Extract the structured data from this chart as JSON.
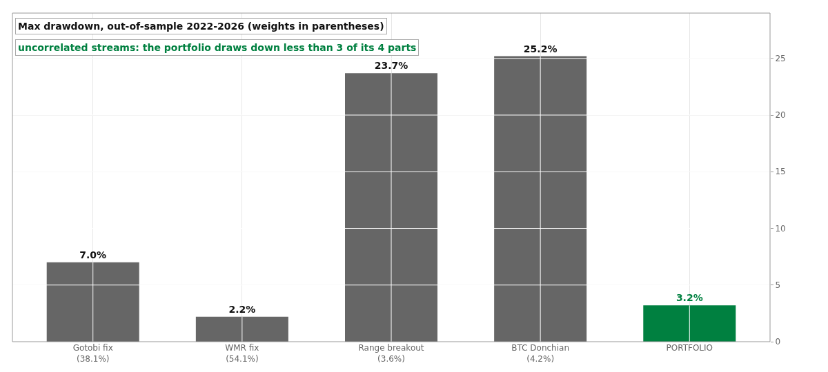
{
  "chart_data": {
    "type": "bar",
    "title": "Max drawdown, out-of-sample 2022-2026 (weights in parentheses)",
    "subtitle": "uncorrelated streams: the portfolio draws down less than 3 of its 4 parts",
    "categories": [
      "Gotobi fix\n(38.1%)",
      "WMR fix\n(54.1%)",
      "Range breakout\n(3.6%)",
      "BTC Donchian\n(4.2%)",
      "PORTFOLIO"
    ],
    "values": [
      7.0,
      2.2,
      23.7,
      25.2,
      3.2
    ],
    "colors": [
      "#666666",
      "#666666",
      "#666666",
      "#666666",
      "#008040"
    ],
    "value_labels": [
      "7.0%",
      "2.2%",
      "23.7%",
      "25.2%",
      "3.2%"
    ],
    "ylim": [
      0,
      29
    ],
    "yticks": [
      0,
      5,
      10,
      15,
      20,
      25
    ],
    "grid": true
  }
}
